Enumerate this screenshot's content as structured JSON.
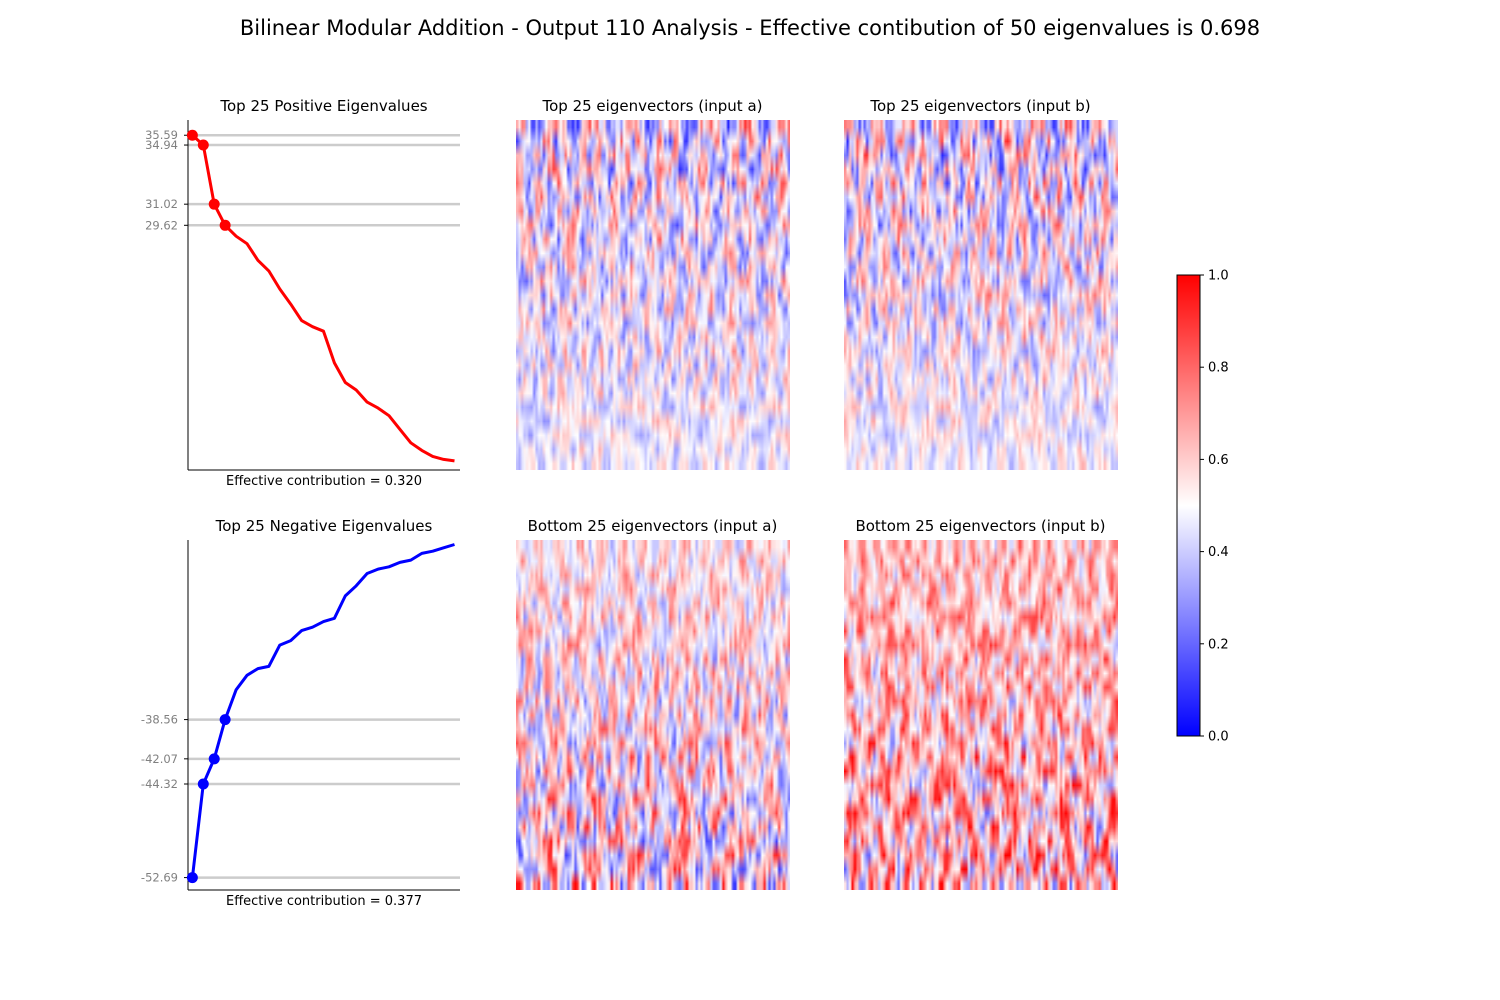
{
  "title": "Bilinear Modular Addition - Output 110 Analysis - Effective contibution of 50 eigenvalues is 0.698",
  "chart_data": [
    {
      "type": "line",
      "title": "Top 25 Positive Eigenvalues",
      "xlabel": "Effective contribution = 0.320",
      "color": "#ff0000",
      "x": [
        0,
        1,
        2,
        3,
        4,
        5,
        6,
        7,
        8,
        9,
        10,
        11,
        12,
        13,
        14,
        15,
        16,
        17,
        18,
        19,
        20,
        21,
        22,
        23,
        24
      ],
      "values": [
        35.59,
        34.94,
        31.02,
        29.62,
        28.9,
        28.4,
        27.3,
        26.6,
        25.4,
        24.4,
        23.3,
        22.9,
        22.6,
        20.5,
        19.2,
        18.7,
        17.9,
        17.5,
        17.0,
        16.1,
        15.2,
        14.7,
        14.3,
        14.1,
        14.0
      ],
      "highlighted_ticks": [
        "35.59",
        "34.94",
        "31.02",
        "29.62"
      ],
      "highlighted_values": [
        35.59,
        34.94,
        31.02,
        29.62
      ],
      "ylim": [
        13.4,
        36.6
      ],
      "xlim": [
        -0.4,
        24.5
      ]
    },
    {
      "type": "heatmap",
      "title": "Top 25 eigenvectors (input a)",
      "colormap": "bwr",
      "rows": 25,
      "cols": 113,
      "vmin": 0.0,
      "vmax": 1.0
    },
    {
      "type": "heatmap",
      "title": "Top 25 eigenvectors (input b)",
      "colormap": "bwr",
      "rows": 25,
      "cols": 113,
      "vmin": 0.0,
      "vmax": 1.0
    },
    {
      "type": "line",
      "title": "Top 25 Negative Eigenvalues",
      "xlabel": "Effective contribution = 0.377",
      "color": "#0000ff",
      "x": [
        0,
        1,
        2,
        3,
        4,
        5,
        6,
        7,
        8,
        9,
        10,
        11,
        12,
        13,
        14,
        15,
        16,
        17,
        18,
        19,
        20,
        21,
        22,
        23,
        24
      ],
      "values": [
        -52.69,
        -44.32,
        -42.07,
        -38.56,
        -35.9,
        -34.6,
        -34.0,
        -33.8,
        -31.9,
        -31.5,
        -30.6,
        -30.3,
        -29.8,
        -29.5,
        -27.5,
        -26.6,
        -25.5,
        -25.1,
        -24.9,
        -24.5,
        -24.3,
        -23.7,
        -23.5,
        -23.2,
        -22.9
      ],
      "highlighted_ticks": [
        "-38.56",
        "-42.07",
        "-44.32",
        "-52.69"
      ],
      "highlighted_values": [
        -38.56,
        -42.07,
        -44.32,
        -52.69
      ],
      "ylim": [
        -53.8,
        -22.5
      ],
      "xlim": [
        -0.4,
        24.5
      ]
    },
    {
      "type": "heatmap",
      "title": "Bottom 25 eigenvectors (input a)",
      "colormap": "bwr",
      "rows": 25,
      "cols": 113,
      "vmin": 0.0,
      "vmax": 1.0
    },
    {
      "type": "heatmap",
      "title": "Bottom 25 eigenvectors (input b)",
      "colormap": "bwr",
      "rows": 25,
      "cols": 113,
      "vmin": 0.0,
      "vmax": 1.0
    }
  ],
  "colorbar": {
    "ticks": [
      "0.0",
      "0.2",
      "0.4",
      "0.6",
      "0.8",
      "1.0"
    ],
    "colormap": "bwr"
  }
}
